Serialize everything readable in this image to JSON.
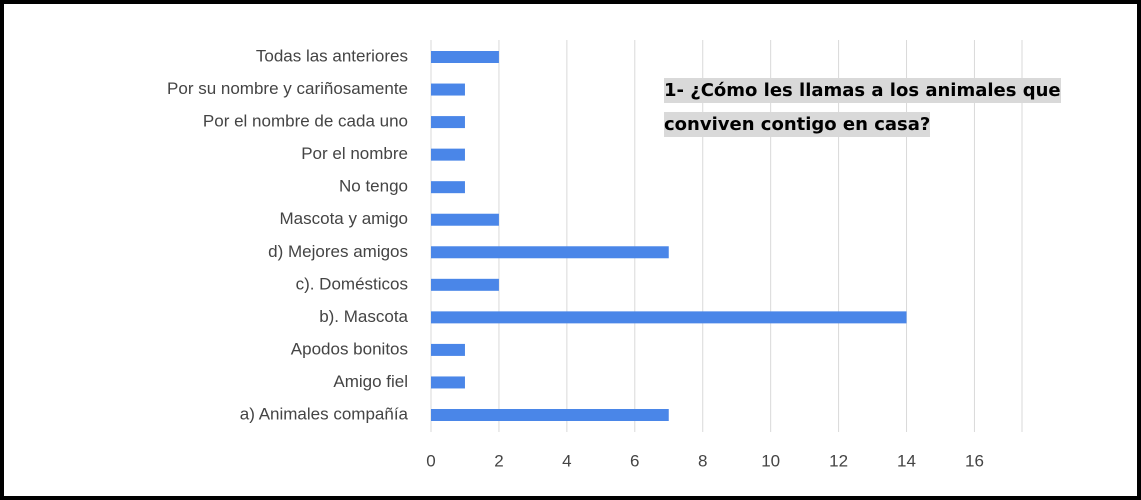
{
  "chart_data": {
    "type": "bar",
    "orientation": "horizontal",
    "title": "1- ¿Cómo les llamas a los animales que conviven contigo en casa?",
    "categories": [
      "Todas las anteriores",
      "Por su nombre y cariñosamente",
      "Por el nombre de cada uno",
      "Por el nombre",
      "No tengo",
      "Mascota y amigo",
      "d) Mejores amigos",
      "c). Domésticos",
      "b). Mascota",
      "Apodos bonitos",
      "Amigo fiel",
      "a) Animales compañía"
    ],
    "values": [
      2,
      1,
      1,
      1,
      1,
      2,
      7,
      2,
      14,
      1,
      1,
      7
    ],
    "color": "#4a86e8",
    "xlim": [
      0,
      17.4
    ],
    "xticks": [
      0,
      2,
      4,
      6,
      8,
      10,
      12,
      14,
      16
    ],
    "grid": true
  }
}
